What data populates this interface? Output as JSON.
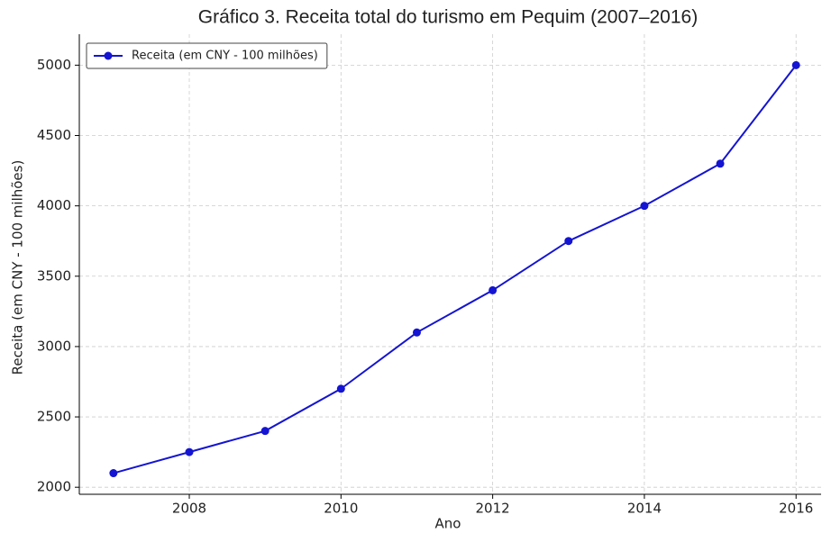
{
  "chart_data": {
    "type": "line",
    "title": "Gráfico 3. Receita total do turismo em Pequim (2007–2016)",
    "xlabel": "Ano",
    "ylabel": "Receita (em CNY - 100 milhões)",
    "x": [
      2007,
      2008,
      2009,
      2010,
      2011,
      2012,
      2013,
      2014,
      2015,
      2016
    ],
    "series": [
      {
        "name": "Receita (em CNY - 100 milhões)",
        "color": "#1414d2",
        "values": [
          2100,
          2250,
          2400,
          2700,
          3100,
          3400,
          3750,
          4000,
          4300,
          5000
        ]
      }
    ],
    "xlim": [
      2006.55,
      2016.33
    ],
    "xticks": [
      2008,
      2010,
      2012,
      2014,
      2016
    ],
    "ylim": [
      1950,
      5220
    ],
    "yticks": [
      2000,
      2500,
      3000,
      3500,
      4000,
      4500,
      5000
    ],
    "grid": true,
    "legend": "upper-left"
  }
}
